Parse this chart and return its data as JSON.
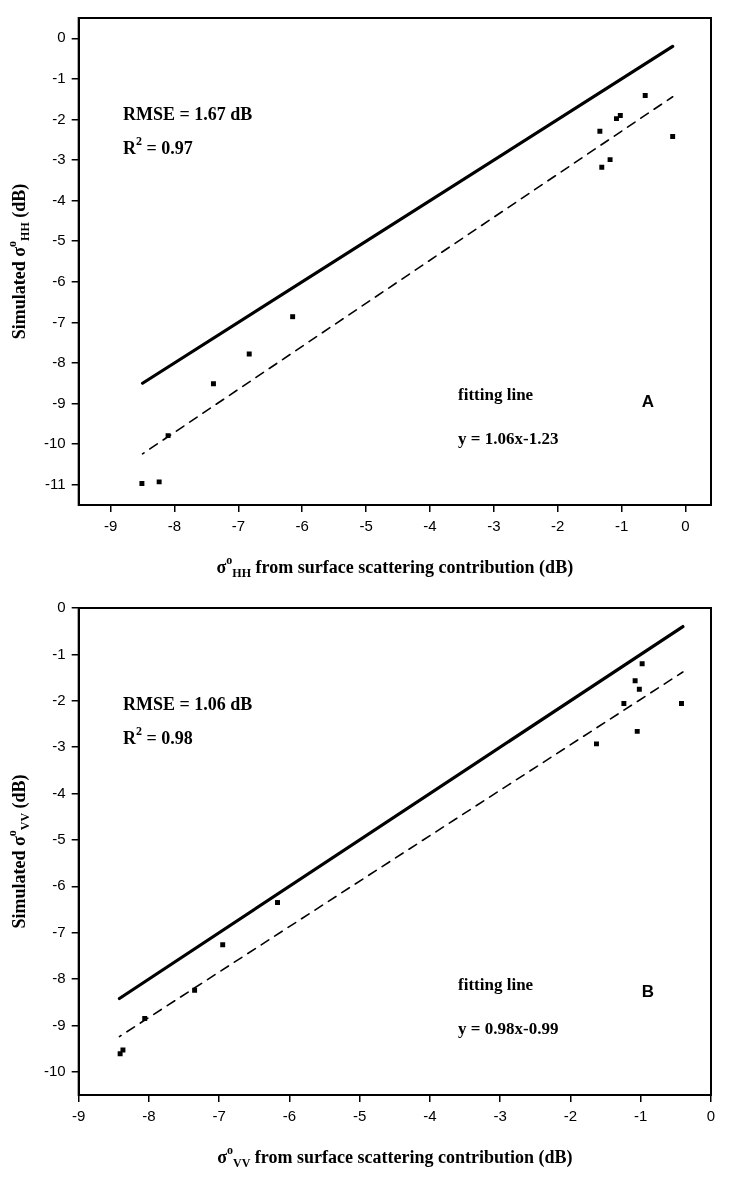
{
  "chart_data": [
    {
      "type": "scatter",
      "xlabel": "σ$^{o}$$_{HH}$ from surface scattering contribution (dB)",
      "ylabel": "Simulated σ$^{o}$$_{HH}$ (dB)",
      "annotations": [
        "RMSE = 1.67 dB",
        "R$^{2}$ = 0.97",
        "fitting line",
        "y = 1.06x-1.23",
        "A"
      ],
      "xlim": [
        -9.5,
        0.4
      ],
      "ylim": [
        -11.5,
        0.5
      ],
      "xticks": [
        -9,
        -8,
        -7,
        -6,
        -5,
        -4,
        -3,
        -2,
        -1,
        0
      ],
      "yticks": [
        -11,
        -10,
        -9,
        -8,
        -7,
        -6,
        -5,
        -4,
        -3,
        -2,
        -1,
        0
      ],
      "series": [
        {
          "type": "scatter",
          "marker": "square",
          "color": "#000000",
          "x": [
            -8.51,
            -8.24,
            -8.1,
            -7.39,
            -6.83,
            -6.15,
            -1.34,
            -1.31,
            -1.18,
            -1.08,
            -1.02,
            -0.63,
            -0.2
          ],
          "values": [
            -10.97,
            -10.93,
            -9.79,
            -8.51,
            -7.78,
            -6.86,
            -2.29,
            -3.18,
            -2.99,
            -1.98,
            -1.9,
            -1.41,
            -2.42
          ]
        },
        {
          "type": "line",
          "marker": "none",
          "line_style": "solid",
          "color": "#000000",
          "x": [
            -8.5,
            -0.2
          ],
          "values": [
            -8.5,
            -0.2
          ]
        },
        {
          "type": "line",
          "marker": "none",
          "line_style": "dashed",
          "color": "#000000",
          "x": [
            -8.5,
            -0.2
          ],
          "values": [
            -10.24,
            -1.44
          ]
        }
      ]
    },
    {
      "type": "scatter",
      "xlabel": "σ$^{o}$$_{VV}$ from surface scattering contribution (dB)",
      "ylabel": "Simulated σ$^{o}$$_{VV}$ (dB)",
      "annotations": [
        "RMSE = 1.06 dB",
        "R$^{2}$ = 0.98",
        "fitting line",
        "y = 0.98x-0.99",
        "B"
      ],
      "xlim": [
        -9,
        0
      ],
      "ylim": [
        -10.5,
        0
      ],
      "xticks": [
        -9,
        -8,
        -7,
        -6,
        -5,
        -4,
        -3,
        -2,
        -1,
        0
      ],
      "yticks": [
        -10,
        -9,
        -8,
        -7,
        -6,
        -5,
        -4,
        -3,
        -2,
        -1,
        0
      ],
      "series": [
        {
          "type": "scatter",
          "marker": "square",
          "color": "#000000",
          "x": [
            -8.41,
            -8.37,
            -8.06,
            -7.35,
            -6.95,
            -6.17,
            -1.63,
            -1.24,
            -1.08,
            -0.98,
            -1.02,
            -1.05,
            -0.42
          ],
          "values": [
            -9.61,
            -9.53,
            -8.85,
            -8.24,
            -7.26,
            -6.35,
            -2.93,
            -2.06,
            -1.57,
            -1.2,
            -1.75,
            -2.66,
            -2.06
          ]
        },
        {
          "type": "line",
          "marker": "none",
          "line_style": "solid",
          "color": "#000000",
          "x": [
            -8.42,
            -0.4
          ],
          "values": [
            -8.42,
            -0.4
          ]
        },
        {
          "type": "line",
          "marker": "none",
          "line_style": "dashed",
          "color": "#000000",
          "x": [
            -8.42,
            -0.4
          ],
          "values": [
            -9.24,
            -1.38
          ]
        }
      ]
    }
  ]
}
